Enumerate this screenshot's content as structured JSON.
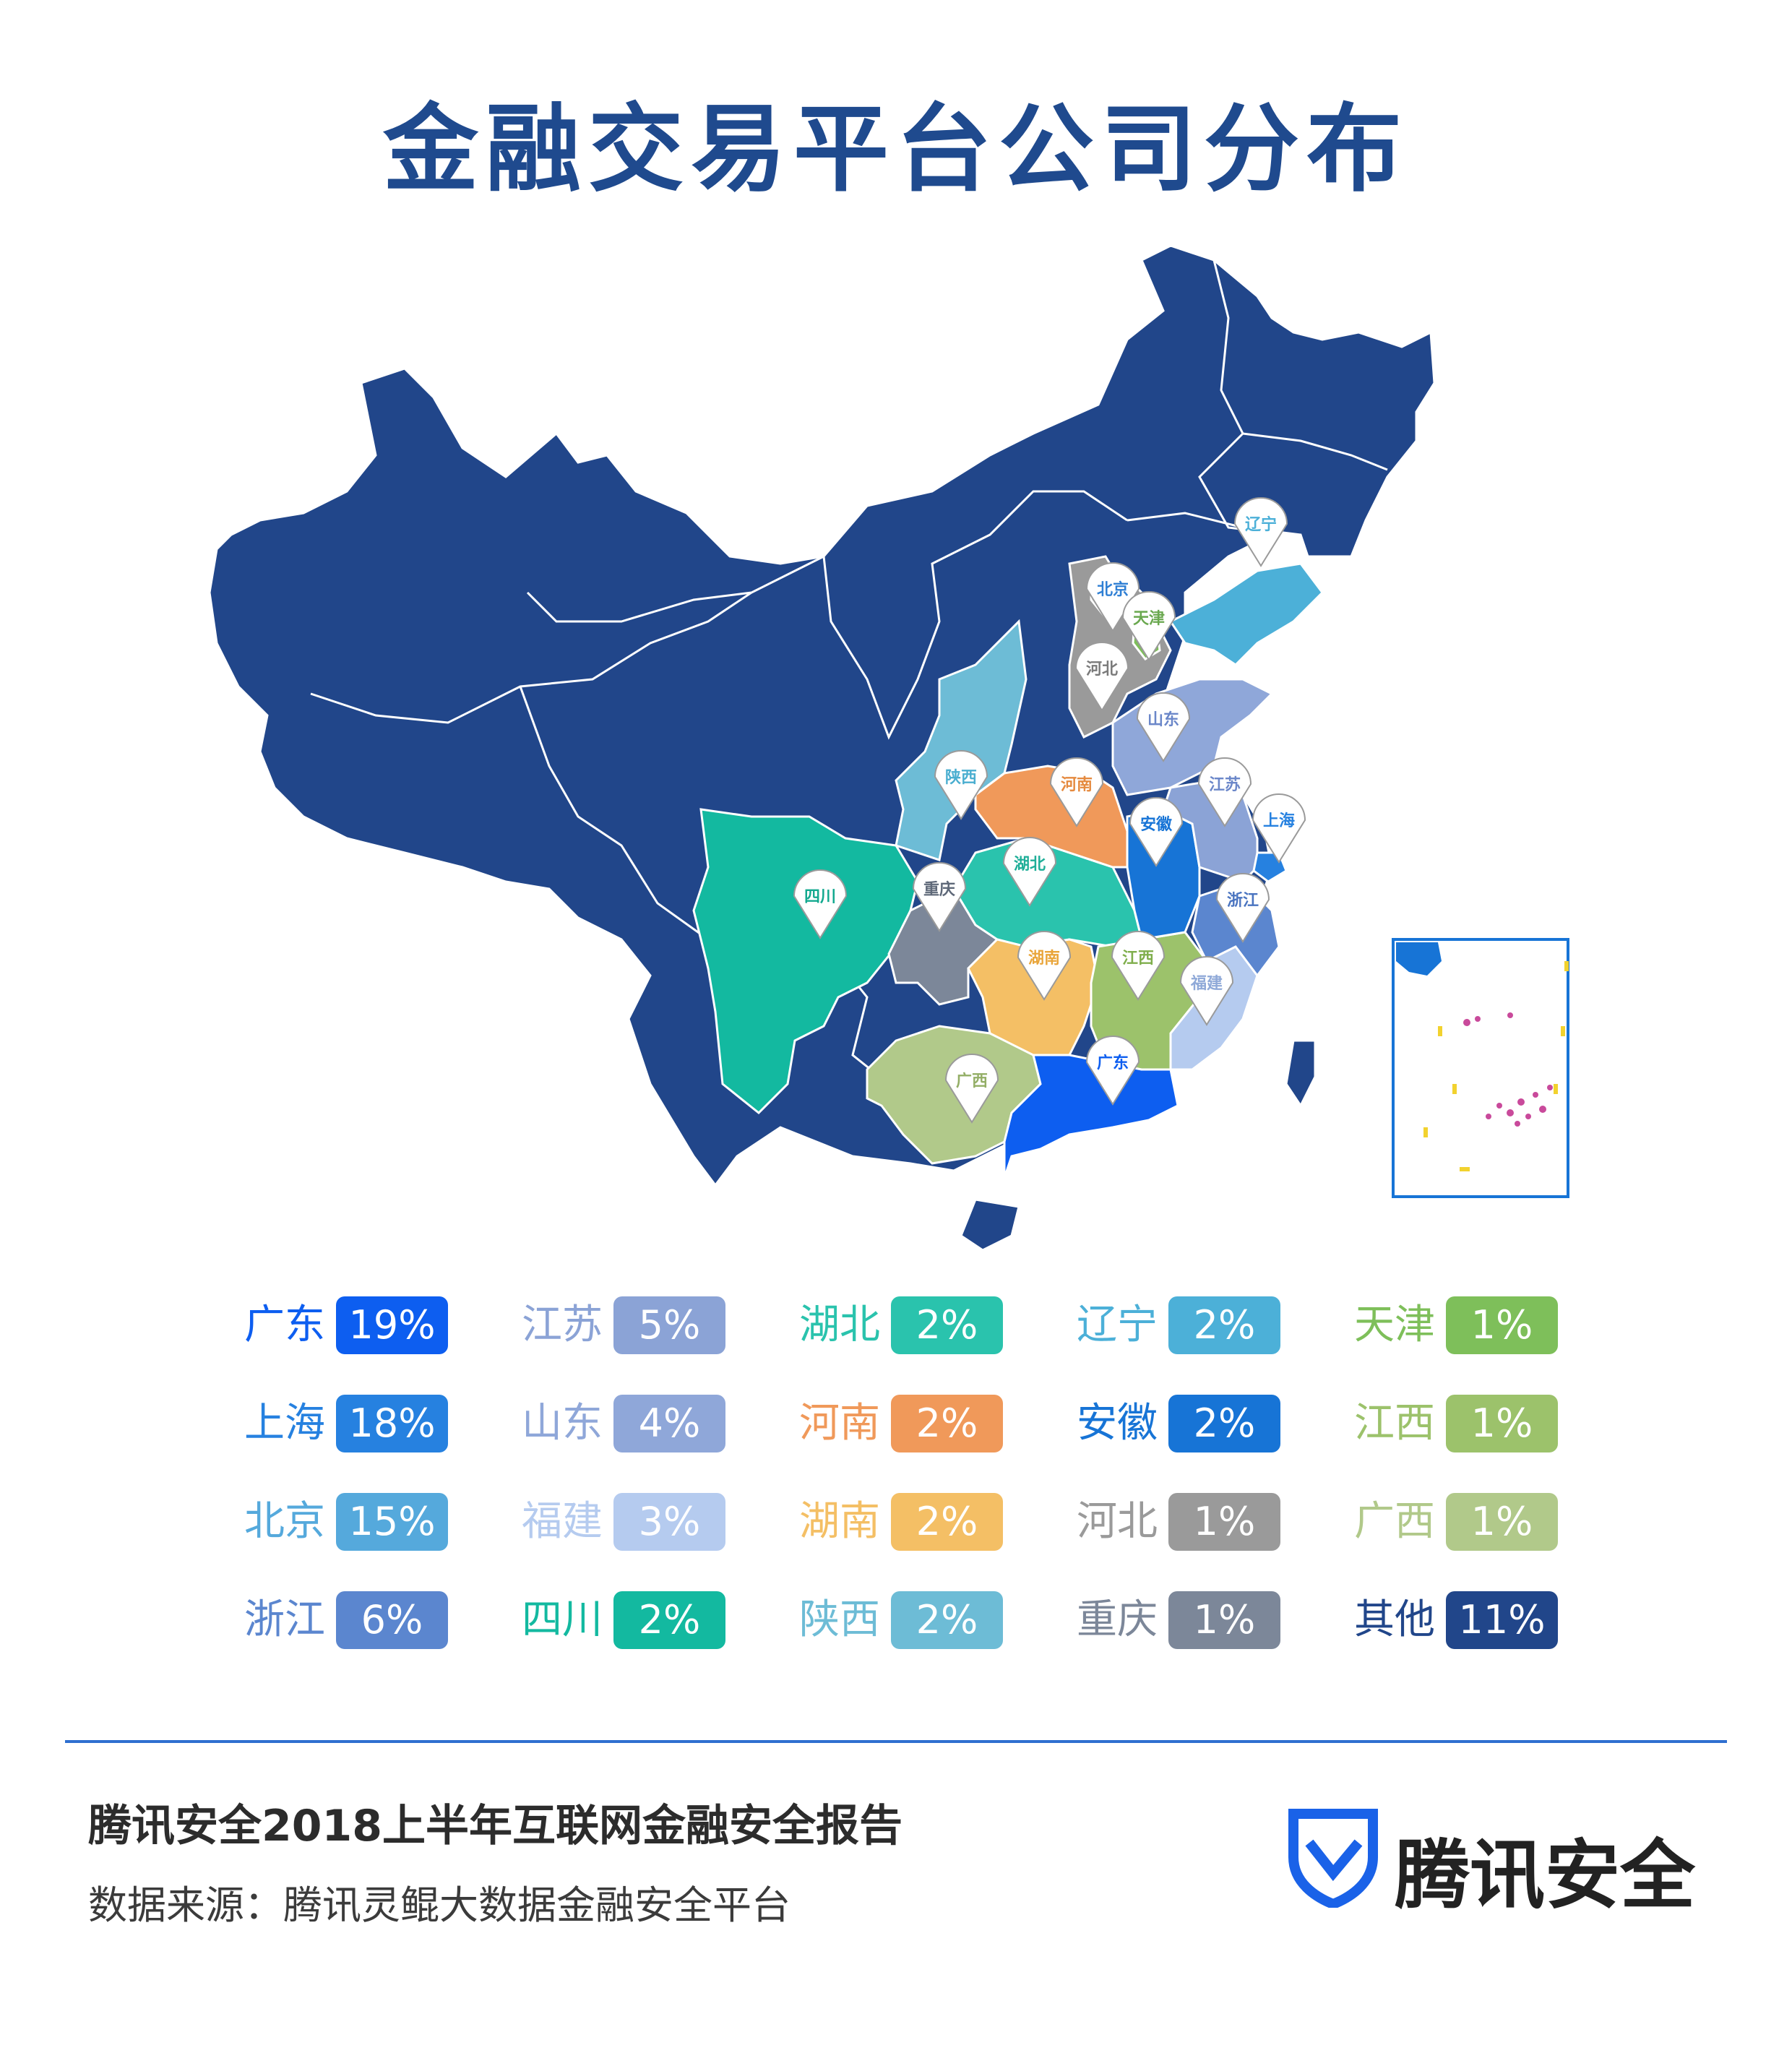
{
  "title": "金融交易平台公司分布",
  "map": {
    "colors": {
      "base": "#21468a",
      "guangdong": "#0d5ef0",
      "shanghai": "#2681e0",
      "beijing": "#9a9a9a",
      "zhejiang": "#5b86cf",
      "jiangsu": "#8ba3d6",
      "shandong": "#8fa7d9",
      "fujian": "#b5cbef",
      "sichuan": "#13b9a0",
      "hubei": "#2ac3ad",
      "henan": "#f0995a",
      "hunan": "#f4bf65",
      "shaanxi": "#6dbcd6",
      "liaoning": "#4cb0d8",
      "anhui": "#1774d6",
      "hebei": "#9a9a9a",
      "chongqing": "#7c8799",
      "tianjin": "#7ebf5a",
      "jiangxi": "#9cc26b",
      "guangxi": "#b1c98a"
    },
    "pins": [
      {
        "label": "辽宁",
        "color": "#4cb0d8"
      },
      {
        "label": "北京",
        "color": "#2f7fd4"
      },
      {
        "label": "天津",
        "color": "#6aa84f"
      },
      {
        "label": "河北",
        "color": "#7a7a7a"
      },
      {
        "label": "山东",
        "color": "#6b87c9"
      },
      {
        "label": "陕西",
        "color": "#4aaed0"
      },
      {
        "label": "河南",
        "color": "#e58a3f"
      },
      {
        "label": "江苏",
        "color": "#6b87c9"
      },
      {
        "label": "上海",
        "color": "#2681e0"
      },
      {
        "label": "安徽",
        "color": "#1774d6"
      },
      {
        "label": "四川",
        "color": "#13a98f"
      },
      {
        "label": "重庆",
        "color": "#5e6878"
      },
      {
        "label": "湖北",
        "color": "#1fae98"
      },
      {
        "label": "浙江",
        "color": "#4a74c0"
      },
      {
        "label": "湖南",
        "color": "#e9a53a"
      },
      {
        "label": "江西",
        "color": "#7fae4c"
      },
      {
        "label": "福建",
        "color": "#8fa9d8"
      },
      {
        "label": "广东",
        "color": "#0d5ef0"
      },
      {
        "label": "广西",
        "color": "#93ae66"
      }
    ]
  },
  "legend": [
    {
      "name": "广东",
      "pct": "19%",
      "color": "#0d5ef0"
    },
    {
      "name": "江苏",
      "pct": "5%",
      "color": "#8ba3d6"
    },
    {
      "name": "湖北",
      "pct": "2%",
      "color": "#2ac3ad"
    },
    {
      "name": "辽宁",
      "pct": "2%",
      "color": "#4cb0d8"
    },
    {
      "name": "天津",
      "pct": "1%",
      "color": "#7ebf5a"
    },
    {
      "name": "上海",
      "pct": "18%",
      "color": "#2681e0"
    },
    {
      "name": "山东",
      "pct": "4%",
      "color": "#8fa7d9"
    },
    {
      "name": "河南",
      "pct": "2%",
      "color": "#f0995a"
    },
    {
      "name": "安徽",
      "pct": "2%",
      "color": "#1774d6"
    },
    {
      "name": "江西",
      "pct": "1%",
      "color": "#9cc26b"
    },
    {
      "name": "北京",
      "pct": "15%",
      "color": "#55a9dc"
    },
    {
      "name": "福建",
      "pct": "3%",
      "color": "#b5cbef"
    },
    {
      "name": "湖南",
      "pct": "2%",
      "color": "#f4bf65"
    },
    {
      "name": "河北",
      "pct": "1%",
      "color": "#9a9a9a"
    },
    {
      "name": "广西",
      "pct": "1%",
      "color": "#b1c98a"
    },
    {
      "name": "浙江",
      "pct": "6%",
      "color": "#5b86cf"
    },
    {
      "name": "四川",
      "pct": "2%",
      "color": "#13b9a0"
    },
    {
      "name": "陕西",
      "pct": "2%",
      "color": "#6dbcd6"
    },
    {
      "name": "重庆",
      "pct": "1%",
      "color": "#7c8799"
    },
    {
      "name": "其他",
      "pct": "11%",
      "color": "#21468a"
    }
  ],
  "footer": {
    "report_title": "腾讯安全2018上半年互联网金融安全报告",
    "source": "数据来源：腾讯灵鲲大数据金融安全平台",
    "brand_name": "腾讯安全",
    "brand_color": "#1a62e8"
  }
}
